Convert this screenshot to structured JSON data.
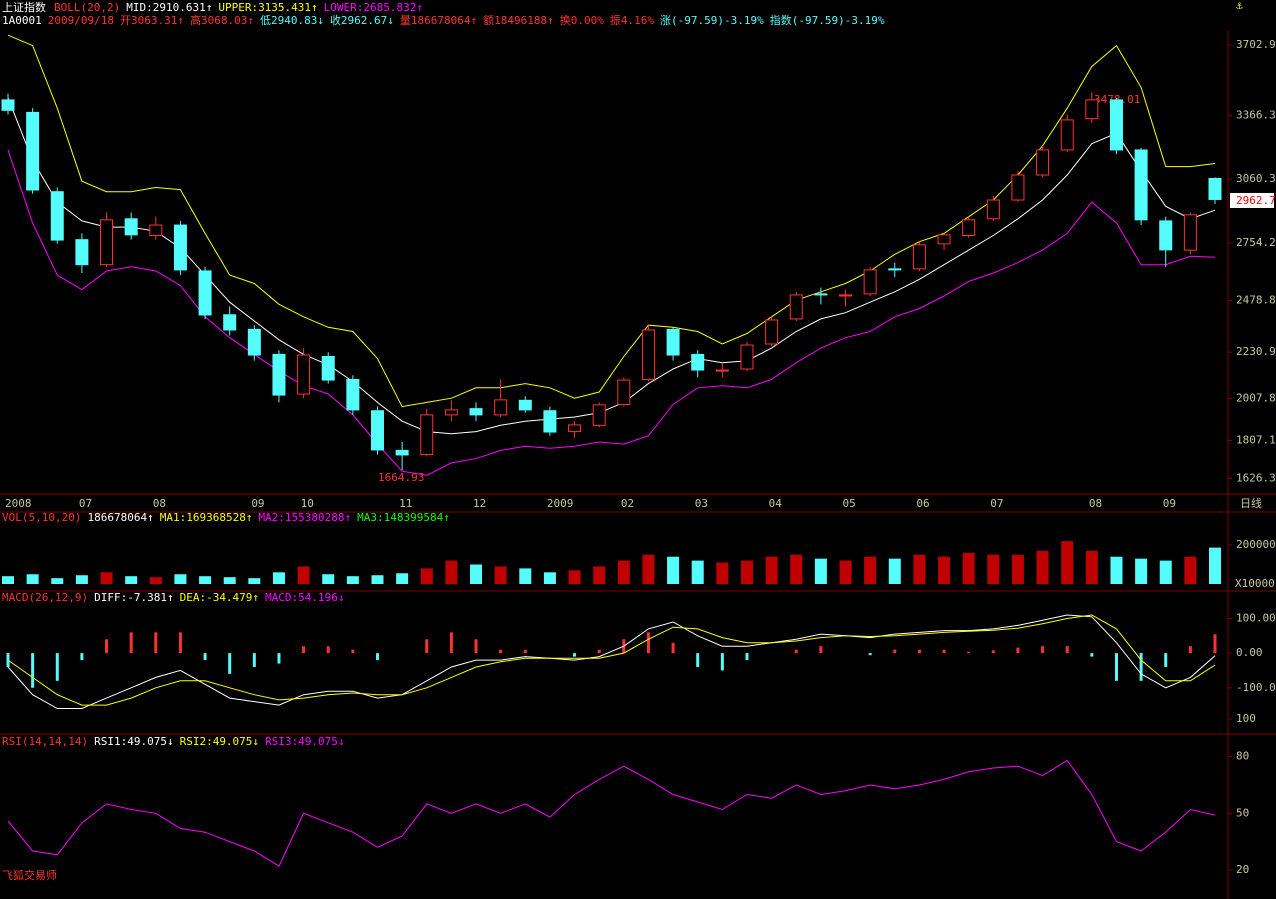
{
  "quote": [
    {
      "text": "1A0001",
      "color": "#ffffff"
    },
    {
      "text": "2009/09/18",
      "color": "#ff3232"
    },
    {
      "text": "开3063.31↑",
      "color": "#ff3232"
    },
    {
      "text": "高3068.03↑",
      "color": "#ff3232"
    },
    {
      "text": "低2940.83↓",
      "color": "#54fcfc"
    },
    {
      "text": "收2962.67↓",
      "color": "#54fcfc"
    },
    {
      "text": "量186678064↑",
      "color": "#ff3232"
    },
    {
      "text": "额18496188↑",
      "color": "#ff3232"
    },
    {
      "text": "换0.00%",
      "color": "#ff3232"
    },
    {
      "text": "振4.16%",
      "color": "#ff3232"
    },
    {
      "text": "涨(-97.59)-3.19%",
      "color": "#54fcfc"
    },
    {
      "text": "指数(-97.59)-3.19%",
      "color": "#54fcfc"
    }
  ],
  "period_label": "日线",
  "watermark": "飞狐交易师",
  "chart_data": [
    {
      "type": "candlestick",
      "title": "上证指数",
      "legend": [
        {
          "text": "BOLL(20,2)",
          "color": "#ff3232"
        },
        {
          "text": "MID:2910.631↑",
          "color": "#ffffff"
        },
        {
          "text": "UPPER:3135.431↑",
          "color": "#ffff00"
        },
        {
          "text": "LOWER:2685.832↑",
          "color": "#ff00ff"
        }
      ],
      "categories": [
        "2008",
        null,
        null,
        "07",
        null,
        null,
        "08",
        null,
        null,
        null,
        "09",
        null,
        "10",
        null,
        null,
        null,
        "11",
        null,
        null,
        "12",
        null,
        null,
        "2009",
        null,
        null,
        "02",
        null,
        null,
        "03",
        null,
        null,
        "04",
        null,
        null,
        "05",
        null,
        null,
        "06",
        null,
        null,
        "07",
        null,
        null,
        null,
        "08",
        null,
        null,
        "09",
        null,
        null
      ],
      "ohlc": [
        [
          3440,
          3470,
          3370,
          3390
        ],
        [
          3380,
          3400,
          2990,
          3008
        ],
        [
          3000,
          3020,
          2750,
          2768
        ],
        [
          2770,
          2800,
          2610,
          2650
        ],
        [
          2650,
          2900,
          2640,
          2865
        ],
        [
          2870,
          2900,
          2770,
          2793
        ],
        [
          2790,
          2880,
          2770,
          2840
        ],
        [
          2840,
          2860,
          2600,
          2625
        ],
        [
          2620,
          2640,
          2390,
          2409
        ],
        [
          2410,
          2450,
          2310,
          2337
        ],
        [
          2340,
          2360,
          2190,
          2217
        ],
        [
          2220,
          2240,
          1990,
          2025
        ],
        [
          2030,
          2250,
          2010,
          2217
        ],
        [
          2210,
          2230,
          2080,
          2097
        ],
        [
          2100,
          2120,
          1930,
          1954
        ],
        [
          1950,
          1970,
          1740,
          1762
        ],
        [
          1760,
          1800,
          1664.93,
          1738
        ],
        [
          1740,
          1960,
          1730,
          1930
        ],
        [
          1930,
          2000,
          1900,
          1954
        ],
        [
          1960,
          1990,
          1900,
          1930
        ],
        [
          1930,
          2100,
          1920,
          2002
        ],
        [
          2000,
          2020,
          1940,
          1954
        ],
        [
          1950,
          1970,
          1830,
          1848
        ],
        [
          1850,
          1900,
          1820,
          1882
        ],
        [
          1880,
          1990,
          1870,
          1978
        ],
        [
          1980,
          2110,
          1970,
          2097
        ],
        [
          2100,
          2360,
          2090,
          2337
        ],
        [
          2340,
          2350,
          2190,
          2217
        ],
        [
          2220,
          2240,
          2110,
          2145
        ],
        [
          2140,
          2180,
          2110,
          2145
        ],
        [
          2150,
          2280,
          2140,
          2265
        ],
        [
          2270,
          2400,
          2260,
          2385
        ],
        [
          2390,
          2520,
          2380,
          2505
        ],
        [
          2510,
          2540,
          2460,
          2505
        ],
        [
          2500,
          2530,
          2450,
          2505
        ],
        [
          2510,
          2640,
          2500,
          2625
        ],
        [
          2630,
          2660,
          2590,
          2625
        ],
        [
          2630,
          2760,
          2620,
          2745
        ],
        [
          2750,
          2800,
          2720,
          2793
        ],
        [
          2790,
          2880,
          2780,
          2865
        ],
        [
          2870,
          2980,
          2860,
          2960
        ],
        [
          2960,
          3100,
          2950,
          3080
        ],
        [
          3080,
          3220,
          3070,
          3200
        ],
        [
          3200,
          3370,
          3190,
          3344
        ],
        [
          3350,
          3478.01,
          3330,
          3440
        ],
        [
          3440,
          3450,
          3180,
          3200
        ],
        [
          3200,
          3210,
          2840,
          2865
        ],
        [
          2860,
          2880,
          2640,
          2721
        ],
        [
          2720,
          2900,
          2700,
          2889
        ],
        [
          3063.31,
          3068.03,
          2940.83,
          2962.67
        ]
      ],
      "up_color": "#ff3232",
      "down_color": "#54fcfc",
      "series": [
        {
          "color": "#ffffff",
          "values": [
            3450,
            3150,
            2950,
            2860,
            2830,
            2830,
            2810,
            2730,
            2600,
            2470,
            2380,
            2290,
            2220,
            2170,
            2090,
            1990,
            1900,
            1850,
            1840,
            1850,
            1880,
            1900,
            1910,
            1920,
            1940,
            1990,
            2080,
            2150,
            2200,
            2180,
            2190,
            2250,
            2330,
            2390,
            2420,
            2470,
            2520,
            2580,
            2650,
            2720,
            2790,
            2870,
            2960,
            3080,
            3230,
            3280,
            3100,
            2930,
            2870,
            2911
          ]
        },
        {
          "color": "#ffff00",
          "values": [
            3750,
            3700,
            3400,
            3050,
            3000,
            3000,
            3020,
            3010,
            2800,
            2600,
            2560,
            2460,
            2400,
            2350,
            2330,
            2200,
            1970,
            1990,
            2010,
            2060,
            2060,
            2080,
            2060,
            2010,
            2040,
            2210,
            2360,
            2350,
            2330,
            2270,
            2320,
            2400,
            2480,
            2520,
            2560,
            2620,
            2700,
            2760,
            2800,
            2880,
            2960,
            3080,
            3220,
            3400,
            3600,
            3700,
            3500,
            3120,
            3120,
            3135
          ]
        },
        {
          "color": "#ff00ff",
          "values": [
            3200,
            2850,
            2600,
            2530,
            2620,
            2640,
            2620,
            2550,
            2400,
            2300,
            2220,
            2140,
            2070,
            2030,
            1930,
            1790,
            1660,
            1640,
            1700,
            1720,
            1760,
            1780,
            1770,
            1780,
            1800,
            1790,
            1830,
            1980,
            2060,
            2070,
            2060,
            2100,
            2180,
            2250,
            2300,
            2330,
            2400,
            2440,
            2500,
            2570,
            2610,
            2660,
            2720,
            2800,
            2950,
            2850,
            2650,
            2650,
            2690,
            2686
          ]
        }
      ],
      "annotations": [
        "3478.01",
        "1664.93",
        "2962.7"
      ],
      "ylim": [
        1570,
        3775
      ],
      "yticks": [
        3702.9,
        3366.3,
        3060.3,
        2754.2,
        2478.8,
        2230.9,
        2007.8,
        1807.1,
        1626.3
      ]
    },
    {
      "type": "volume",
      "legend": [
        {
          "text": "VOL(5,10,20)",
          "color": "#ff3232"
        },
        {
          "text": "186678064↑",
          "color": "#ffffff"
        },
        {
          "text": "MA1:169368528↑",
          "color": "#ffff00"
        },
        {
          "text": "MA2:155380288↑",
          "color": "#ff00ff"
        },
        {
          "text": "MA3:148399584↑",
          "color": "#00ff00"
        }
      ],
      "values": [
        40000,
        50000,
        30000,
        45000,
        60000,
        40000,
        35000,
        50000,
        40000,
        35000,
        30000,
        60000,
        90000,
        50000,
        40000,
        45000,
        55000,
        80000,
        120000,
        100000,
        90000,
        80000,
        60000,
        70000,
        90000,
        120000,
        150000,
        140000,
        120000,
        110000,
        120000,
        140000,
        150000,
        130000,
        120000,
        140000,
        130000,
        150000,
        140000,
        160000,
        150000,
        150000,
        170000,
        220000,
        170000,
        140000,
        130000,
        120000,
        140000,
        186678
      ],
      "unit_label": "X10000",
      "ylim": [
        0,
        277000
      ],
      "yticks": [
        200000
      ]
    },
    {
      "type": "macd",
      "legend": [
        {
          "text": "MACD(26,12,9)",
          "color": "#ff3232"
        },
        {
          "text": "DIFF:-7.381↑",
          "color": "#ffffff"
        },
        {
          "text": "DEA:-34.479↑",
          "color": "#ffff00"
        },
        {
          "text": "MACD:54.196↓",
          "color": "#ff00ff"
        }
      ],
      "values": [
        -40,
        -100,
        -80,
        -20,
        40,
        60,
        60,
        60,
        -20,
        -60,
        -40,
        -30,
        20,
        20,
        10,
        -20,
        0,
        40,
        60,
        40,
        10,
        10,
        0,
        -10,
        10,
        40,
        60,
        30,
        -40,
        -50,
        -20,
        0,
        10,
        20,
        0,
        -6,
        10,
        10,
        10,
        4,
        8,
        16,
        20,
        20,
        -10,
        -80,
        -80,
        -40,
        20,
        54.196
      ],
      "series": [
        {
          "color": "#ffffff",
          "values": [
            -40,
            -120,
            -160,
            -160,
            -130,
            -100,
            -70,
            -50,
            -90,
            -130,
            -140,
            -150,
            -120,
            -110,
            -110,
            -130,
            -120,
            -80,
            -40,
            -20,
            -20,
            -10,
            -15,
            -20,
            -10,
            20,
            70,
            90,
            50,
            20,
            20,
            30,
            40,
            55,
            50,
            45,
            55,
            60,
            65,
            65,
            70,
            80,
            95,
            110,
            105,
            30,
            -60,
            -100,
            -70,
            -7.381
          ]
        },
        {
          "color": "#ffff00",
          "values": [
            -20,
            -70,
            -120,
            -150,
            -150,
            -130,
            -100,
            -80,
            -80,
            -100,
            -120,
            -135,
            -130,
            -120,
            -115,
            -120,
            -120,
            -100,
            -70,
            -40,
            -25,
            -15,
            -15,
            -15,
            -15,
            0,
            40,
            75,
            70,
            45,
            30,
            30,
            35,
            45,
            50,
            48,
            50,
            55,
            60,
            63,
            66,
            72,
            85,
            100,
            110,
            70,
            -20,
            -80,
            -80,
            -34.479
          ]
        }
      ],
      "ylim": [
        -170,
        139
      ],
      "yticks": [
        {
          "value": 100,
          "label": "100.00"
        },
        {
          "value": 0,
          "label": "0.00"
        },
        {
          "value": -100,
          "label": "-100.0"
        }
      ]
    },
    {
      "type": "line",
      "legend": [
        {
          "text": "RSI(14,14,14)",
          "color": "#ff3232"
        },
        {
          "text": "RSI1:49.075↓",
          "color": "#ffffff"
        },
        {
          "text": "RSI2:49.075↓",
          "color": "#ffff00"
        },
        {
          "text": "RSI3:49.075↓",
          "color": "#ff00ff"
        }
      ],
      "series": [
        {
          "color": "#ff00ff",
          "values": [
            46,
            30,
            28,
            45,
            55,
            52,
            50,
            42,
            40,
            35,
            30,
            22,
            50,
            45,
            40,
            32,
            38,
            55,
            50,
            55,
            50,
            55,
            48,
            60,
            68,
            75,
            68,
            60,
            56,
            52,
            60,
            58,
            65,
            60,
            62,
            65,
            63,
            65,
            68,
            72,
            74,
            75,
            70,
            78,
            60,
            35,
            30,
            40,
            52,
            49.075
          ]
        }
      ],
      "ylim": [
        12,
        100
      ],
      "yticks": [
        100,
        80,
        50,
        20
      ]
    }
  ]
}
